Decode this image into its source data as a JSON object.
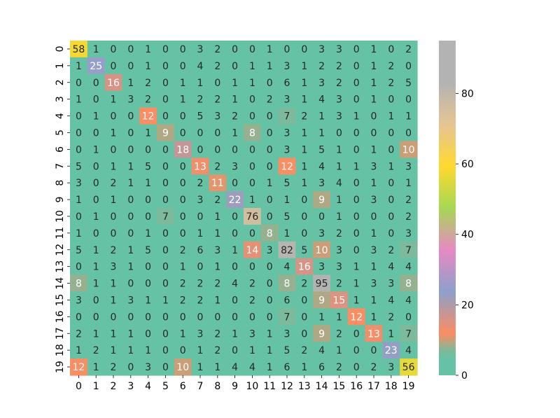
{
  "chart_data": {
    "type": "heatmap",
    "title": "",
    "xlabel": "",
    "ylabel": "",
    "x_categories": [
      "0",
      "1",
      "2",
      "3",
      "4",
      "5",
      "6",
      "7",
      "8",
      "9",
      "10",
      "11",
      "12",
      "13",
      "14",
      "15",
      "16",
      "17",
      "18",
      "19"
    ],
    "y_categories": [
      "0",
      "1",
      "2",
      "3",
      "4",
      "5",
      "6",
      "7",
      "8",
      "9",
      "10",
      "11",
      "12",
      "13",
      "14",
      "15",
      "16",
      "17",
      "18",
      "19"
    ],
    "values": [
      [
        58,
        1,
        0,
        0,
        1,
        0,
        0,
        3,
        2,
        0,
        0,
        1,
        0,
        0,
        3,
        3,
        0,
        1,
        0,
        2
      ],
      [
        1,
        25,
        0,
        0,
        1,
        0,
        0,
        4,
        2,
        0,
        1,
        1,
        3,
        1,
        2,
        2,
        0,
        1,
        2,
        0
      ],
      [
        0,
        0,
        16,
        1,
        2,
        0,
        1,
        1,
        0,
        1,
        1,
        0,
        6,
        1,
        3,
        2,
        0,
        1,
        2,
        5
      ],
      [
        1,
        0,
        1,
        3,
        2,
        0,
        1,
        2,
        2,
        1,
        0,
        2,
        3,
        1,
        4,
        3,
        0,
        1,
        0,
        0
      ],
      [
        0,
        1,
        0,
        0,
        12,
        0,
        0,
        5,
        3,
        2,
        0,
        0,
        7,
        2,
        1,
        3,
        1,
        0,
        1,
        1
      ],
      [
        0,
        0,
        1,
        0,
        1,
        9,
        0,
        0,
        0,
        1,
        8,
        0,
        3,
        1,
        1,
        0,
        0,
        0,
        0,
        0
      ],
      [
        0,
        1,
        0,
        0,
        0,
        0,
        18,
        0,
        0,
        0,
        0,
        0,
        3,
        1,
        5,
        1,
        0,
        1,
        0,
        10
      ],
      [
        5,
        0,
        1,
        1,
        5,
        0,
        0,
        13,
        2,
        3,
        0,
        0,
        12,
        1,
        4,
        1,
        1,
        3,
        1,
        3
      ],
      [
        3,
        0,
        2,
        1,
        1,
        0,
        0,
        2,
        11,
        0,
        0,
        1,
        5,
        1,
        3,
        4,
        0,
        1,
        0,
        1
      ],
      [
        1,
        0,
        1,
        0,
        0,
        0,
        0,
        3,
        2,
        22,
        1,
        0,
        1,
        0,
        9,
        1,
        0,
        3,
        0,
        2
      ],
      [
        0,
        1,
        0,
        0,
        0,
        7,
        0,
        0,
        1,
        0,
        76,
        0,
        5,
        0,
        0,
        1,
        0,
        0,
        0,
        2
      ],
      [
        1,
        0,
        0,
        0,
        1,
        0,
        0,
        1,
        1,
        0,
        0,
        8,
        1,
        0,
        3,
        2,
        0,
        1,
        0,
        3
      ],
      [
        5,
        1,
        2,
        1,
        5,
        0,
        2,
        6,
        3,
        1,
        14,
        3,
        82,
        5,
        10,
        3,
        0,
        3,
        2,
        7
      ],
      [
        0,
        1,
        3,
        1,
        0,
        0,
        1,
        0,
        1,
        0,
        0,
        0,
        4,
        16,
        3,
        3,
        1,
        1,
        4,
        4
      ],
      [
        8,
        1,
        1,
        0,
        0,
        0,
        2,
        2,
        2,
        4,
        2,
        0,
        8,
        2,
        95,
        2,
        1,
        3,
        3,
        8
      ],
      [
        3,
        0,
        1,
        3,
        1,
        1,
        2,
        2,
        1,
        0,
        2,
        0,
        6,
        0,
        9,
        15,
        1,
        1,
        4,
        4
      ],
      [
        0,
        0,
        0,
        0,
        0,
        0,
        0,
        0,
        0,
        0,
        0,
        0,
        7,
        0,
        1,
        1,
        12,
        1,
        2,
        0
      ],
      [
        2,
        1,
        1,
        1,
        0,
        0,
        1,
        3,
        2,
        1,
        3,
        1,
        3,
        0,
        9,
        2,
        0,
        13,
        1,
        7
      ],
      [
        1,
        2,
        1,
        1,
        1,
        0,
        0,
        1,
        2,
        0,
        1,
        1,
        5,
        2,
        4,
        1,
        0,
        0,
        23,
        4
      ],
      [
        12,
        1,
        2,
        0,
        3,
        0,
        10,
        1,
        1,
        4,
        4,
        1,
        6,
        1,
        6,
        2,
        0,
        2,
        3,
        56
      ]
    ],
    "vmin": 0,
    "vmax": 95,
    "colormap": "Set2",
    "colorbar_ticks": [
      0,
      20,
      40,
      60,
      80
    ],
    "annotated": true,
    "grid": false
  }
}
